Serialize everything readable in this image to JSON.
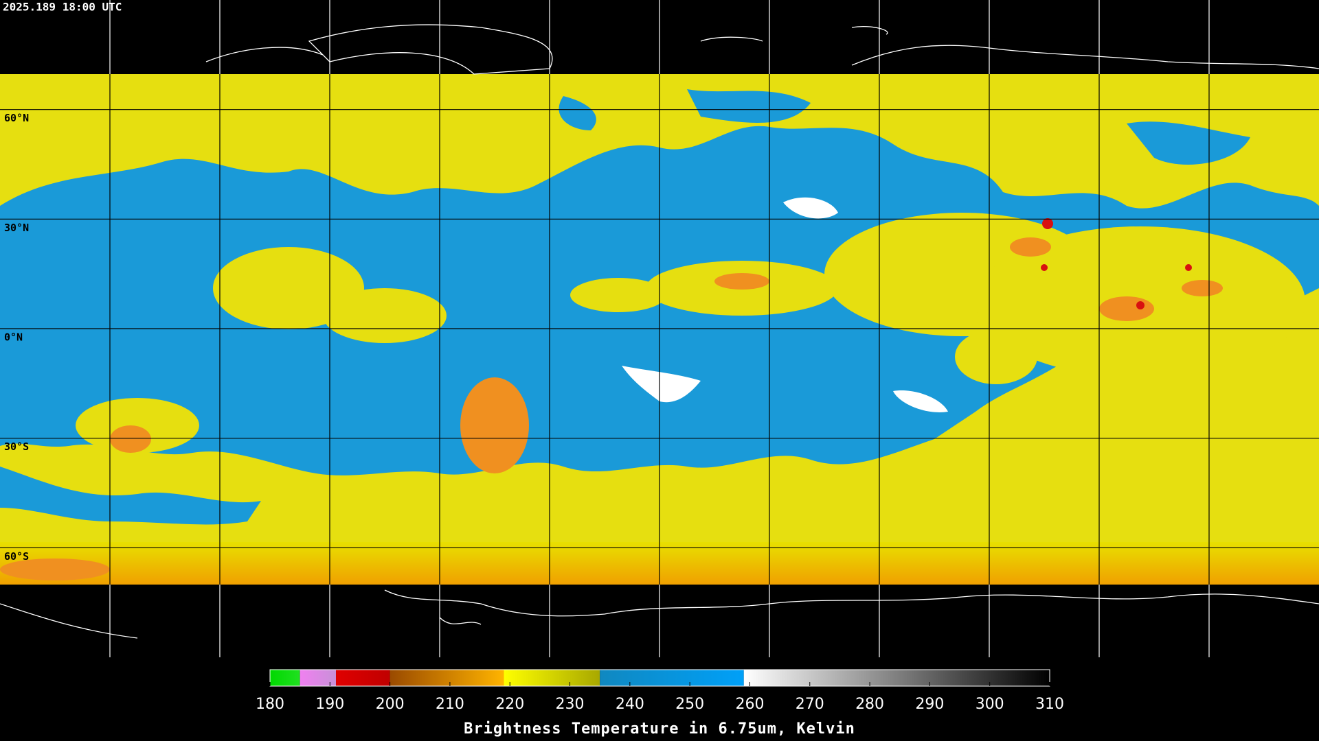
{
  "header": {
    "timestamp": "2025.189 18:00 UTC"
  },
  "map": {
    "latitudes": [
      {
        "value": 60,
        "label": "60°N"
      },
      {
        "value": 30,
        "label": "30°N"
      },
      {
        "value": 0,
        "label": "0°N"
      },
      {
        "value": -30,
        "label": "30°S"
      },
      {
        "value": -60,
        "label": "60°S"
      }
    ]
  },
  "colorbar": {
    "label": "Brightness Temperature in 6.75um, Kelvin",
    "range": [
      180,
      310
    ],
    "ticks": [
      180,
      190,
      200,
      210,
      220,
      230,
      240,
      250,
      260,
      270,
      280,
      290,
      300,
      310
    ],
    "segments": [
      {
        "from": 180,
        "to": 185,
        "colors": [
          "#00d800",
          "#20e020"
        ]
      },
      {
        "from": 185,
        "to": 191,
        "colors": [
          "#f080f0",
          "#c890d8"
        ]
      },
      {
        "from": 191,
        "to": 200,
        "colors": [
          "#e00000",
          "#c00000"
        ]
      },
      {
        "from": 200,
        "to": 219,
        "colors": [
          "#9a4a00",
          "#ffb400"
        ]
      },
      {
        "from": 219,
        "to": 235,
        "colors": [
          "#ffff00",
          "#a8a800"
        ]
      },
      {
        "from": 235,
        "to": 259,
        "colors": [
          "#1088c0",
          "#00a0f8"
        ]
      },
      {
        "from": 259,
        "to": 310,
        "colors": [
          "#ffffff",
          "#000000"
        ]
      }
    ]
  }
}
